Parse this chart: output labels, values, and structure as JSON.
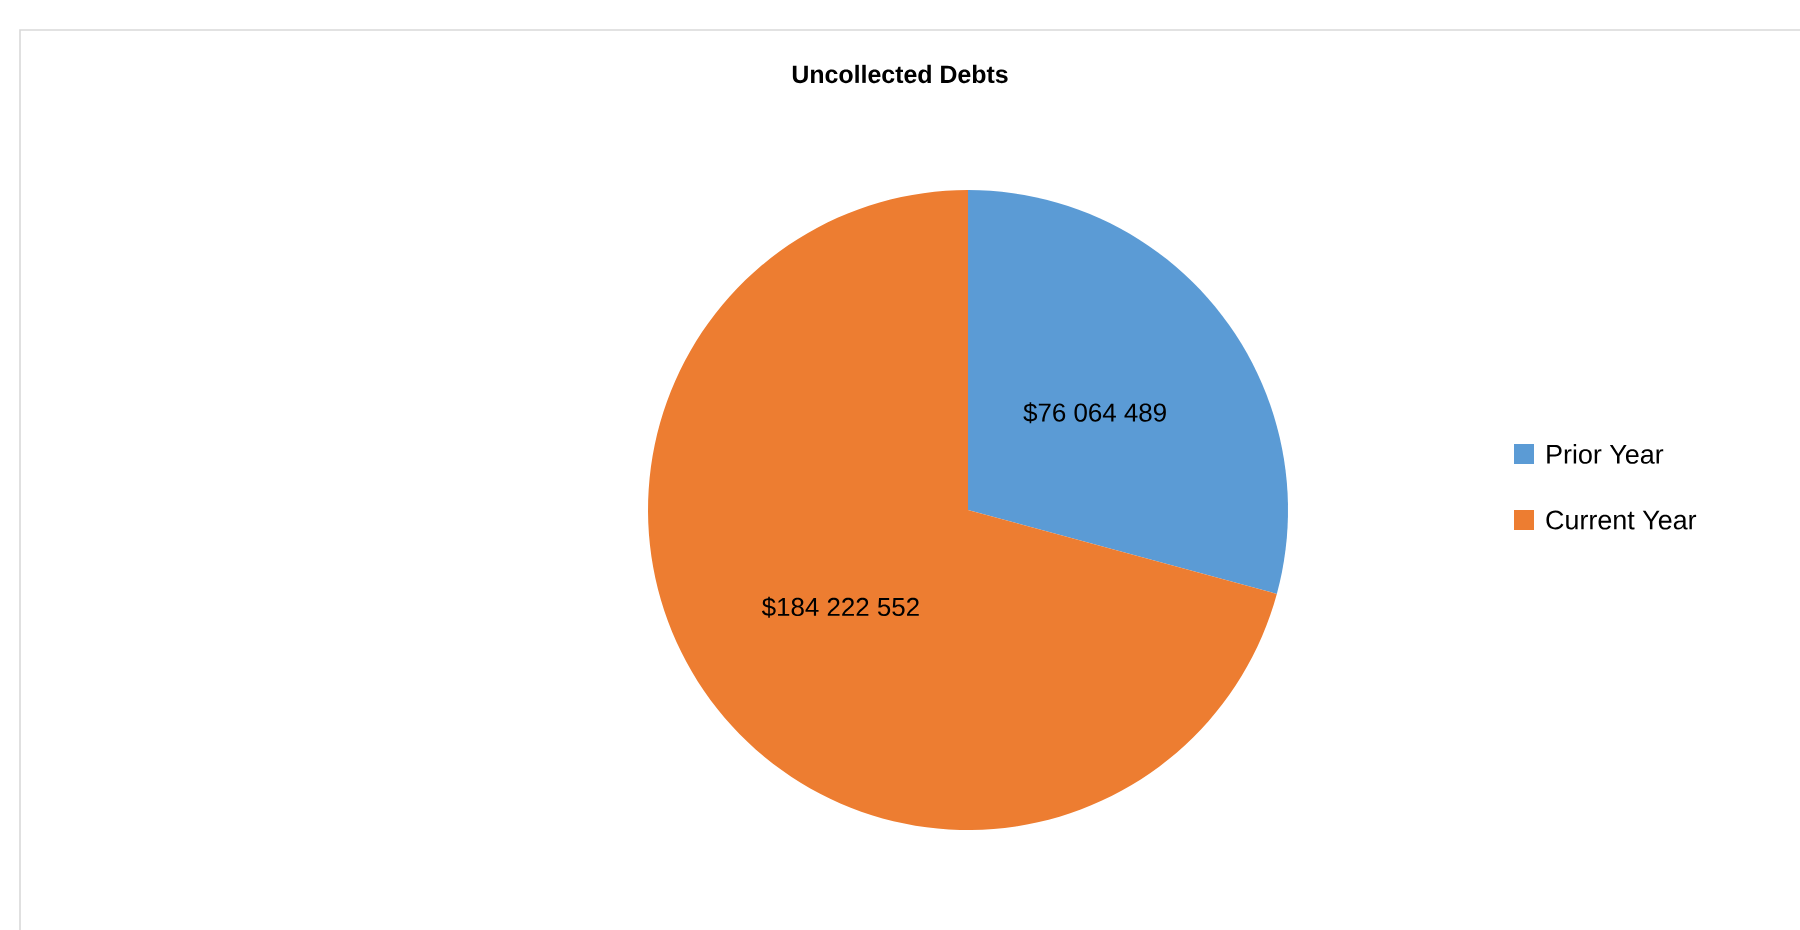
{
  "chart_data": {
    "type": "pie",
    "title": "Uncollected Debts",
    "categories": [
      "Prior Year",
      "Current Year"
    ],
    "values": [
      76064489,
      184222552
    ],
    "colors": [
      "#5b9bd5",
      "#ed7d31"
    ],
    "value_labels": [
      "$76 064 489",
      "$184 222 552"
    ],
    "legend": "right"
  }
}
